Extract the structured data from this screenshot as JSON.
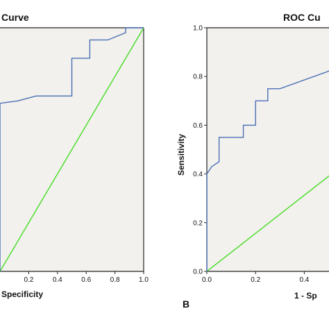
{
  "colors": {
    "plot_bg": "#f2f1ed",
    "roc": "#4a6fb5",
    "reference": "#44dd22",
    "axis": "#222222"
  },
  "chart_data": [
    {
      "type": "line",
      "title": "Curve",
      "xlabel": "Specificity",
      "ylabel": "",
      "xlim": [
        0,
        1
      ],
      "ylim": [
        0,
        1
      ],
      "x_ticks": [
        "0.2",
        "0.4",
        "0.6",
        "0.8",
        "1.0"
      ],
      "y_ticks": [],
      "series": [
        {
          "x": [
            0,
            0.0,
            0.125,
            0.125,
            0.25,
            0.25,
            0.375,
            0.375,
            0.5,
            0.5,
            0.625,
            0.625,
            0.75,
            0.875,
            0.875,
            1.0
          ],
          "y": [
            0,
            0.69,
            0.7,
            0.7,
            0.72,
            0.72,
            0.72,
            0.72,
            0.72,
            0.875,
            0.875,
            0.95,
            0.95,
            0.98,
            1.0,
            1.0
          ]
        },
        {
          "x": [
            0,
            1
          ],
          "y": [
            0,
            1
          ]
        }
      ]
    },
    {
      "type": "line",
      "title": "ROC Cu",
      "xlabel": "1 - Sp",
      "ylabel": "Sensitivity",
      "xlim": [
        0,
        1
      ],
      "ylim": [
        0,
        1
      ],
      "x_ticks": [
        "0.0",
        "0.2",
        "0.4"
      ],
      "y_ticks": [
        "0.0",
        "0.2",
        "0.4",
        "0.6",
        "0.8",
        "1.0"
      ],
      "series": [
        {
          "x": [
            0,
            0,
            0.02,
            0.05,
            0.05,
            0.15,
            0.15,
            0.2,
            0.2,
            0.25,
            0.25,
            0.3,
            0.55
          ],
          "y": [
            0,
            0.4,
            0.43,
            0.45,
            0.55,
            0.55,
            0.6,
            0.6,
            0.7,
            0.7,
            0.75,
            0.75,
            0.84
          ]
        },
        {
          "x": [
            0,
            0.55
          ],
          "y": [
            0,
            0.43
          ]
        }
      ]
    }
  ],
  "panel_label": "B"
}
